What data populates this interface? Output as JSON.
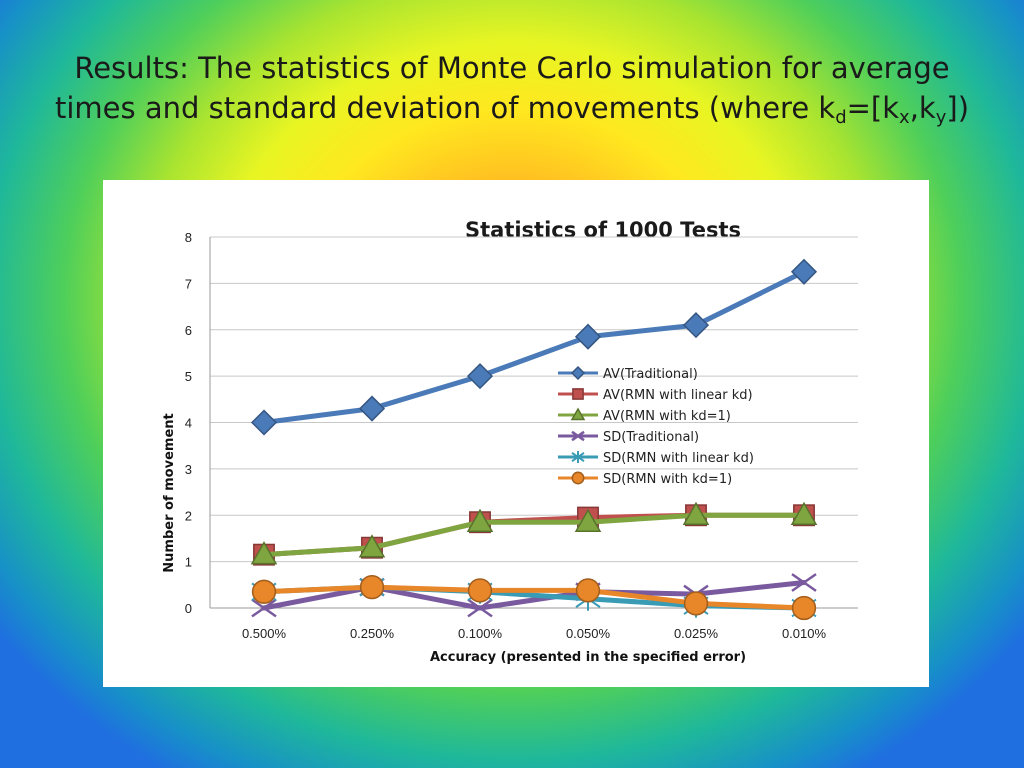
{
  "slide": {
    "title_line1": "Results: The statistics of Monte Carlo simulation for average",
    "title_line2_text": "times and standard deviation of movements (where k",
    "title_sub_d": "d",
    "title_eq": "=[k",
    "title_sub_x": "x",
    "title_comma": ",k",
    "title_sub_y": "y",
    "title_end": "])"
  },
  "chart_data": {
    "type": "line",
    "title": "Statistics of 1000 Tests",
    "xlabel": "Accuracy (presented in the specified error)",
    "ylabel": "Number of movement",
    "categories": [
      "0.500%",
      "0.250%",
      "0.100%",
      "0.050%",
      "0.025%",
      "0.010%"
    ],
    "ylim": [
      0,
      8
    ],
    "yticks": [
      0,
      1,
      2,
      3,
      4,
      5,
      6,
      7,
      8
    ],
    "grid": true,
    "legend_position": "center-right",
    "series": [
      {
        "name": "AV(Traditional)",
        "values": [
          4.0,
          4.3,
          5.0,
          5.85,
          6.1,
          7.25
        ],
        "color": "#4a7ab8",
        "marker": "diamond"
      },
      {
        "name": "AV(RMN with linear kd)",
        "values": [
          1.15,
          1.3,
          1.85,
          1.95,
          2.0,
          2.0
        ],
        "color": "#c0504d",
        "marker": "square"
      },
      {
        "name": "AV(RMN with kd=1)",
        "values": [
          1.15,
          1.3,
          1.85,
          1.85,
          2.0,
          2.0
        ],
        "color": "#7fa540",
        "marker": "triangle"
      },
      {
        "name": "SD(Traditional)",
        "values": [
          0.0,
          0.45,
          0.0,
          0.35,
          0.3,
          0.55
        ],
        "color": "#7a5a9e",
        "marker": "x"
      },
      {
        "name": "SD(RMN with linear kd)",
        "values": [
          0.35,
          0.45,
          0.35,
          0.2,
          0.05,
          0.0
        ],
        "color": "#3a9bb5",
        "marker": "star"
      },
      {
        "name": "SD(RMN with kd=1)",
        "values": [
          0.35,
          0.45,
          0.38,
          0.38,
          0.1,
          0.0
        ],
        "color": "#e8862a",
        "marker": "circle"
      }
    ]
  }
}
